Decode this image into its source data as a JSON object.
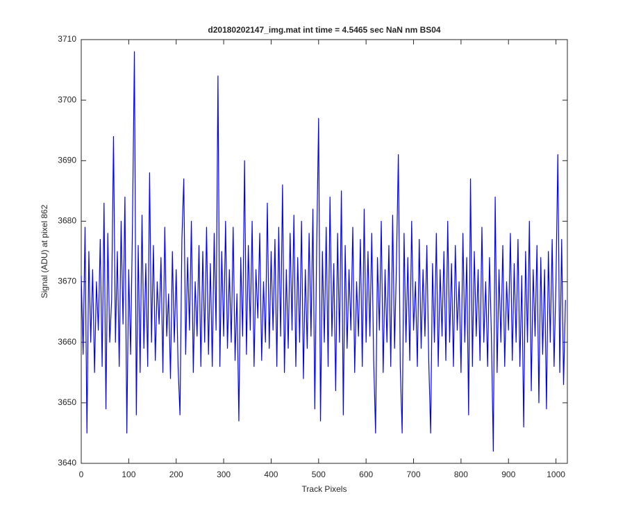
{
  "chart_data": {
    "type": "line",
    "title": "d20180202147_img.mat int time = 4.5465 sec  NaN nm BS04",
    "xlabel": "Track Pixels",
    "ylabel": "Signal (ADU) at pixel 862",
    "xlim": [
      0,
      1024
    ],
    "ylim": [
      3640,
      3710
    ],
    "xticks": [
      0,
      100,
      200,
      300,
      400,
      500,
      600,
      700,
      800,
      900,
      1000
    ],
    "yticks": [
      3640,
      3650,
      3660,
      3670,
      3680,
      3690,
      3700,
      3710
    ],
    "grid": false,
    "series": [
      {
        "color": "#0000ff",
        "x": [
          0,
          4,
          8,
          12,
          16,
          20,
          24,
          28,
          32,
          36,
          40,
          44,
          48,
          52,
          56,
          60,
          64,
          68,
          72,
          76,
          80,
          84,
          88,
          92,
          96,
          100,
          104,
          108,
          112,
          116,
          120,
          124,
          128,
          132,
          136,
          140,
          144,
          148,
          152,
          156,
          160,
          164,
          168,
          172,
          176,
          180,
          184,
          188,
          192,
          196,
          200,
          204,
          208,
          212,
          216,
          220,
          224,
          228,
          232,
          236,
          240,
          244,
          248,
          252,
          256,
          260,
          264,
          268,
          272,
          276,
          280,
          284,
          288,
          292,
          296,
          300,
          304,
          308,
          312,
          316,
          320,
          324,
          328,
          332,
          336,
          340,
          344,
          348,
          352,
          356,
          360,
          364,
          368,
          372,
          376,
          380,
          384,
          388,
          392,
          396,
          400,
          404,
          408,
          412,
          416,
          420,
          424,
          428,
          432,
          436,
          440,
          444,
          448,
          452,
          456,
          460,
          464,
          468,
          472,
          476,
          480,
          484,
          488,
          492,
          496,
          500,
          504,
          508,
          512,
          516,
          520,
          524,
          528,
          532,
          536,
          540,
          544,
          548,
          552,
          556,
          560,
          564,
          568,
          572,
          576,
          580,
          584,
          588,
          592,
          596,
          600,
          604,
          608,
          612,
          616,
          620,
          624,
          628,
          632,
          636,
          640,
          644,
          648,
          652,
          656,
          660,
          664,
          668,
          672,
          676,
          680,
          684,
          688,
          692,
          696,
          700,
          704,
          708,
          712,
          716,
          720,
          724,
          728,
          732,
          736,
          740,
          744,
          748,
          752,
          756,
          760,
          764,
          768,
          772,
          776,
          780,
          784,
          788,
          792,
          796,
          800,
          804,
          808,
          812,
          816,
          820,
          824,
          828,
          832,
          836,
          840,
          844,
          848,
          852,
          856,
          860,
          864,
          868,
          872,
          876,
          880,
          884,
          888,
          892,
          896,
          900,
          904,
          908,
          912,
          916,
          920,
          924,
          928,
          932,
          936,
          940,
          944,
          948,
          952,
          956,
          960,
          964,
          968,
          972,
          976,
          980,
          984,
          988,
          992,
          996,
          1000,
          1004,
          1008,
          1012,
          1016,
          1020
        ],
        "values": [
          3671,
          3658,
          3679,
          3645,
          3675,
          3660,
          3672,
          3655,
          3670,
          3662,
          3677,
          3656,
          3683,
          3649,
          3678,
          3660,
          3667,
          3694,
          3660,
          3675,
          3656,
          3680,
          3663,
          3684,
          3645,
          3672,
          3658,
          3680,
          3708,
          3648,
          3676,
          3655,
          3681,
          3659,
          3673,
          3656,
          3688,
          3660,
          3676,
          3657,
          3670,
          3663,
          3674,
          3655,
          3679,
          3661,
          3668,
          3654,
          3675,
          3660,
          3672,
          3656,
          3648,
          3677,
          3687,
          3658,
          3674,
          3662,
          3680,
          3655,
          3670,
          3661,
          3676,
          3656,
          3675,
          3660,
          3679,
          3658,
          3673,
          3656,
          3678,
          3662,
          3704,
          3656,
          3675,
          3661,
          3680,
          3659,
          3672,
          3660,
          3679,
          3657,
          3668,
          3647,
          3674,
          3661,
          3690,
          3658,
          3676,
          3662,
          3680,
          3656,
          3672,
          3664,
          3678,
          3657,
          3670,
          3660,
          3683,
          3659,
          3675,
          3662,
          3677,
          3656,
          3679,
          3661,
          3686,
          3655,
          3672,
          3659,
          3678,
          3662,
          3681,
          3656,
          3674,
          3660,
          3680,
          3654,
          3672,
          3659,
          3678,
          3661,
          3682,
          3649,
          3676,
          3697,
          3647,
          3675,
          3660,
          3679,
          3656,
          3684,
          3661,
          3673,
          3652,
          3678,
          3660,
          3685,
          3648,
          3676,
          3659,
          3672,
          3662,
          3679,
          3655,
          3670,
          3661,
          3677,
          3656,
          3682,
          3660,
          3675,
          3661,
          3678,
          3657,
          3645,
          3674,
          3662,
          3680,
          3655,
          3672,
          3660,
          3676,
          3656,
          3681,
          3659,
          3673,
          3691,
          3656,
          3645,
          3678,
          3660,
          3674,
          3657,
          3680,
          3662,
          3670,
          3656,
          3677,
          3659,
          3672,
          3661,
          3676,
          3657,
          3645,
          3673,
          3660,
          3678,
          3656,
          3672,
          3661,
          3675,
          3657,
          3680,
          3660,
          3673,
          3656,
          3676,
          3662,
          3670,
          3655,
          3678,
          3660,
          3674,
          3648,
          3687,
          3656,
          3675,
          3661,
          3672,
          3657,
          3679,
          3660,
          3670,
          3656,
          3674,
          3661,
          3642,
          3684,
          3655,
          3672,
          3660,
          3676,
          3656,
          3670,
          3662,
          3678,
          3657,
          3673,
          3660,
          3677,
          3656,
          3671,
          3646,
          3675,
          3660,
          3680,
          3652,
          3672,
          3661,
          3676,
          3650,
          3674,
          3658,
          3672,
          3649,
          3675,
          3660,
          3677,
          3656,
          3670,
          3691,
          3655,
          3677,
          3653,
          3667
        ]
      }
    ]
  }
}
